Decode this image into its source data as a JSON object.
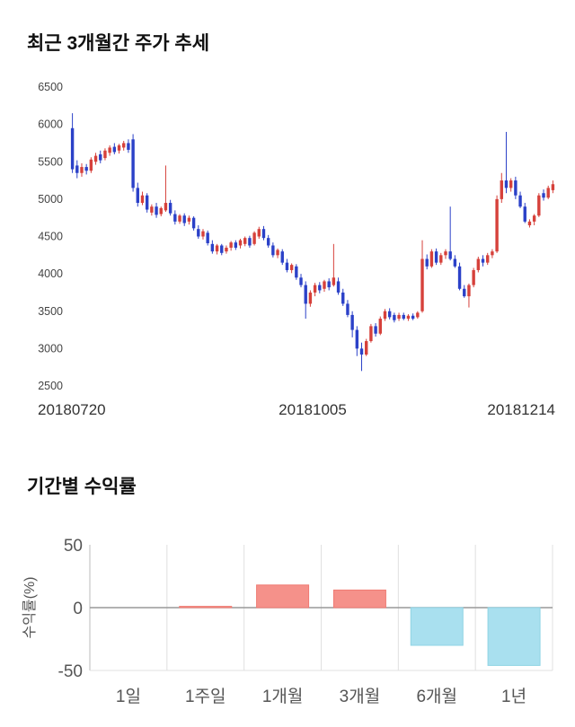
{
  "chart_data": [
    {
      "type": "candlestick",
      "title": "최근 3개월간 주가 추세",
      "x_tick_labels": [
        "20180720",
        "20181005",
        "20181214"
      ],
      "y_ticks": [
        2500,
        3000,
        3500,
        4000,
        4500,
        5000,
        5500,
        6000,
        6500
      ],
      "ylim": [
        2500,
        6500
      ],
      "grid": false,
      "up_color": "#d6413b",
      "down_color": "#2b41c8",
      "candles_ohlc": [
        [
          5950,
          6150,
          5350,
          5400
        ],
        [
          5450,
          5520,
          5280,
          5350
        ],
        [
          5350,
          5480,
          5300,
          5430
        ],
        [
          5430,
          5470,
          5330,
          5380
        ],
        [
          5380,
          5560,
          5350,
          5530
        ],
        [
          5500,
          5620,
          5460,
          5580
        ],
        [
          5600,
          5650,
          5480,
          5520
        ],
        [
          5550,
          5680,
          5520,
          5650
        ],
        [
          5620,
          5720,
          5580,
          5690
        ],
        [
          5700,
          5750,
          5600,
          5630
        ],
        [
          5650,
          5740,
          5610,
          5720
        ],
        [
          5690,
          5780,
          5650,
          5750
        ],
        [
          5750,
          5800,
          5620,
          5660
        ],
        [
          5800,
          5870,
          5100,
          5150
        ],
        [
          5150,
          5220,
          4900,
          4950
        ],
        [
          4950,
          5100,
          4920,
          5050
        ],
        [
          5050,
          5080,
          4820,
          4860
        ],
        [
          4820,
          4930,
          4780,
          4900
        ],
        [
          4900,
          4950,
          4750,
          4790
        ],
        [
          4800,
          4900,
          4770,
          4880
        ],
        [
          4850,
          5450,
          4830,
          4950
        ],
        [
          4950,
          4990,
          4780,
          4810
        ],
        [
          4800,
          4850,
          4660,
          4700
        ],
        [
          4700,
          4800,
          4670,
          4780
        ],
        [
          4780,
          4810,
          4640,
          4680
        ],
        [
          4700,
          4780,
          4660,
          4750
        ],
        [
          4750,
          4770,
          4580,
          4610
        ],
        [
          4600,
          4650,
          4470,
          4500
        ],
        [
          4500,
          4600,
          4460,
          4570
        ],
        [
          4550,
          4580,
          4380,
          4410
        ],
        [
          4400,
          4450,
          4270,
          4300
        ],
        [
          4300,
          4400,
          4260,
          4380
        ],
        [
          4380,
          4400,
          4250,
          4280
        ],
        [
          4300,
          4380,
          4270,
          4350
        ],
        [
          4350,
          4440,
          4310,
          4420
        ],
        [
          4420,
          4450,
          4320,
          4350
        ],
        [
          4380,
          4470,
          4340,
          4450
        ],
        [
          4400,
          4500,
          4370,
          4480
        ],
        [
          4480,
          4510,
          4350,
          4380
        ],
        [
          4400,
          4570,
          4380,
          4550
        ],
        [
          4500,
          4630,
          4470,
          4600
        ],
        [
          4600,
          4640,
          4450,
          4480
        ],
        [
          4480,
          4520,
          4350,
          4380
        ],
        [
          4380,
          4420,
          4220,
          4250
        ],
        [
          4250,
          4340,
          4210,
          4320
        ],
        [
          4300,
          4330,
          4120,
          4150
        ],
        [
          4150,
          4200,
          4020,
          4050
        ],
        [
          4050,
          4140,
          4010,
          4120
        ],
        [
          4100,
          4130,
          3920,
          3950
        ],
        [
          3950,
          4000,
          3820,
          3850
        ],
        [
          3850,
          3900,
          3400,
          3600
        ],
        [
          3600,
          3780,
          3560,
          3750
        ],
        [
          3750,
          3880,
          3700,
          3850
        ],
        [
          3850,
          3890,
          3740,
          3780
        ],
        [
          3800,
          3920,
          3760,
          3900
        ],
        [
          3900,
          3940,
          3780,
          3820
        ],
        [
          3850,
          4400,
          3830,
          3950
        ],
        [
          3900,
          3950,
          3720,
          3750
        ],
        [
          3750,
          3800,
          3570,
          3600
        ],
        [
          3600,
          3650,
          3420,
          3450
        ],
        [
          3450,
          3500,
          3150,
          3250
        ],
        [
          3250,
          3300,
          2900,
          3000
        ],
        [
          3000,
          3080,
          2700,
          2920
        ],
        [
          2920,
          3130,
          2900,
          3100
        ],
        [
          3100,
          3330,
          3080,
          3300
        ],
        [
          3300,
          3340,
          3160,
          3200
        ],
        [
          3200,
          3430,
          3180,
          3400
        ],
        [
          3400,
          3530,
          3370,
          3500
        ],
        [
          3500,
          3540,
          3390,
          3420
        ],
        [
          3450,
          3480,
          3350,
          3380
        ],
        [
          3400,
          3480,
          3370,
          3450
        ],
        [
          3450,
          3480,
          3380,
          3400
        ],
        [
          3400,
          3460,
          3370,
          3440
        ],
        [
          3440,
          3470,
          3380,
          3400
        ],
        [
          3420,
          3500,
          3400,
          3480
        ],
        [
          3500,
          4450,
          3480,
          4200
        ],
        [
          4200,
          4260,
          4060,
          4100
        ],
        [
          4100,
          4330,
          4080,
          4300
        ],
        [
          4300,
          4340,
          4120,
          4150
        ],
        [
          4150,
          4280,
          4120,
          4250
        ],
        [
          4250,
          4330,
          4200,
          4300
        ],
        [
          4300,
          4900,
          4180,
          4200
        ],
        [
          4200,
          4250,
          4080,
          4100
        ],
        [
          4100,
          4150,
          3780,
          3800
        ],
        [
          3800,
          3850,
          3680,
          3700
        ],
        [
          3700,
          3870,
          3550,
          3850
        ],
        [
          3850,
          4080,
          3820,
          4050
        ],
        [
          4050,
          4230,
          4020,
          4200
        ],
        [
          4200,
          4250,
          4100,
          4150
        ],
        [
          4150,
          4280,
          4120,
          4250
        ],
        [
          4250,
          4330,
          4210,
          4300
        ],
        [
          4300,
          5050,
          4280,
          5000
        ],
        [
          5000,
          5350,
          4950,
          5250
        ],
        [
          5250,
          5900,
          5080,
          5150
        ],
        [
          5150,
          5280,
          5100,
          5250
        ],
        [
          5250,
          5300,
          5000,
          5050
        ],
        [
          5050,
          5100,
          4880,
          4900
        ],
        [
          4900,
          4950,
          4680,
          4700
        ],
        [
          4650,
          4730,
          4620,
          4700
        ],
        [
          4700,
          4800,
          4650,
          4780
        ],
        [
          4780,
          5080,
          4760,
          5050
        ],
        [
          5080,
          5130,
          4980,
          5020
        ],
        [
          5020,
          5180,
          5000,
          5150
        ],
        [
          5120,
          5250,
          5080,
          5200
        ]
      ]
    },
    {
      "type": "bar",
      "title": "기간별 수익률",
      "ylabel": "수익률(%)",
      "categories": [
        "1일",
        "1주일",
        "1개월",
        "3개월",
        "6개월",
        "1년"
      ],
      "values": [
        0,
        1,
        18,
        14,
        -30,
        -46
      ],
      "y_ticks": [
        50,
        0,
        -50
      ],
      "ylim": [
        -50,
        50
      ],
      "grid": true,
      "positive_color": "#f5918a",
      "negative_color": "#a9e0ef",
      "positive_edge": "#ef7b73",
      "negative_edge": "#8fd4e4"
    }
  ]
}
